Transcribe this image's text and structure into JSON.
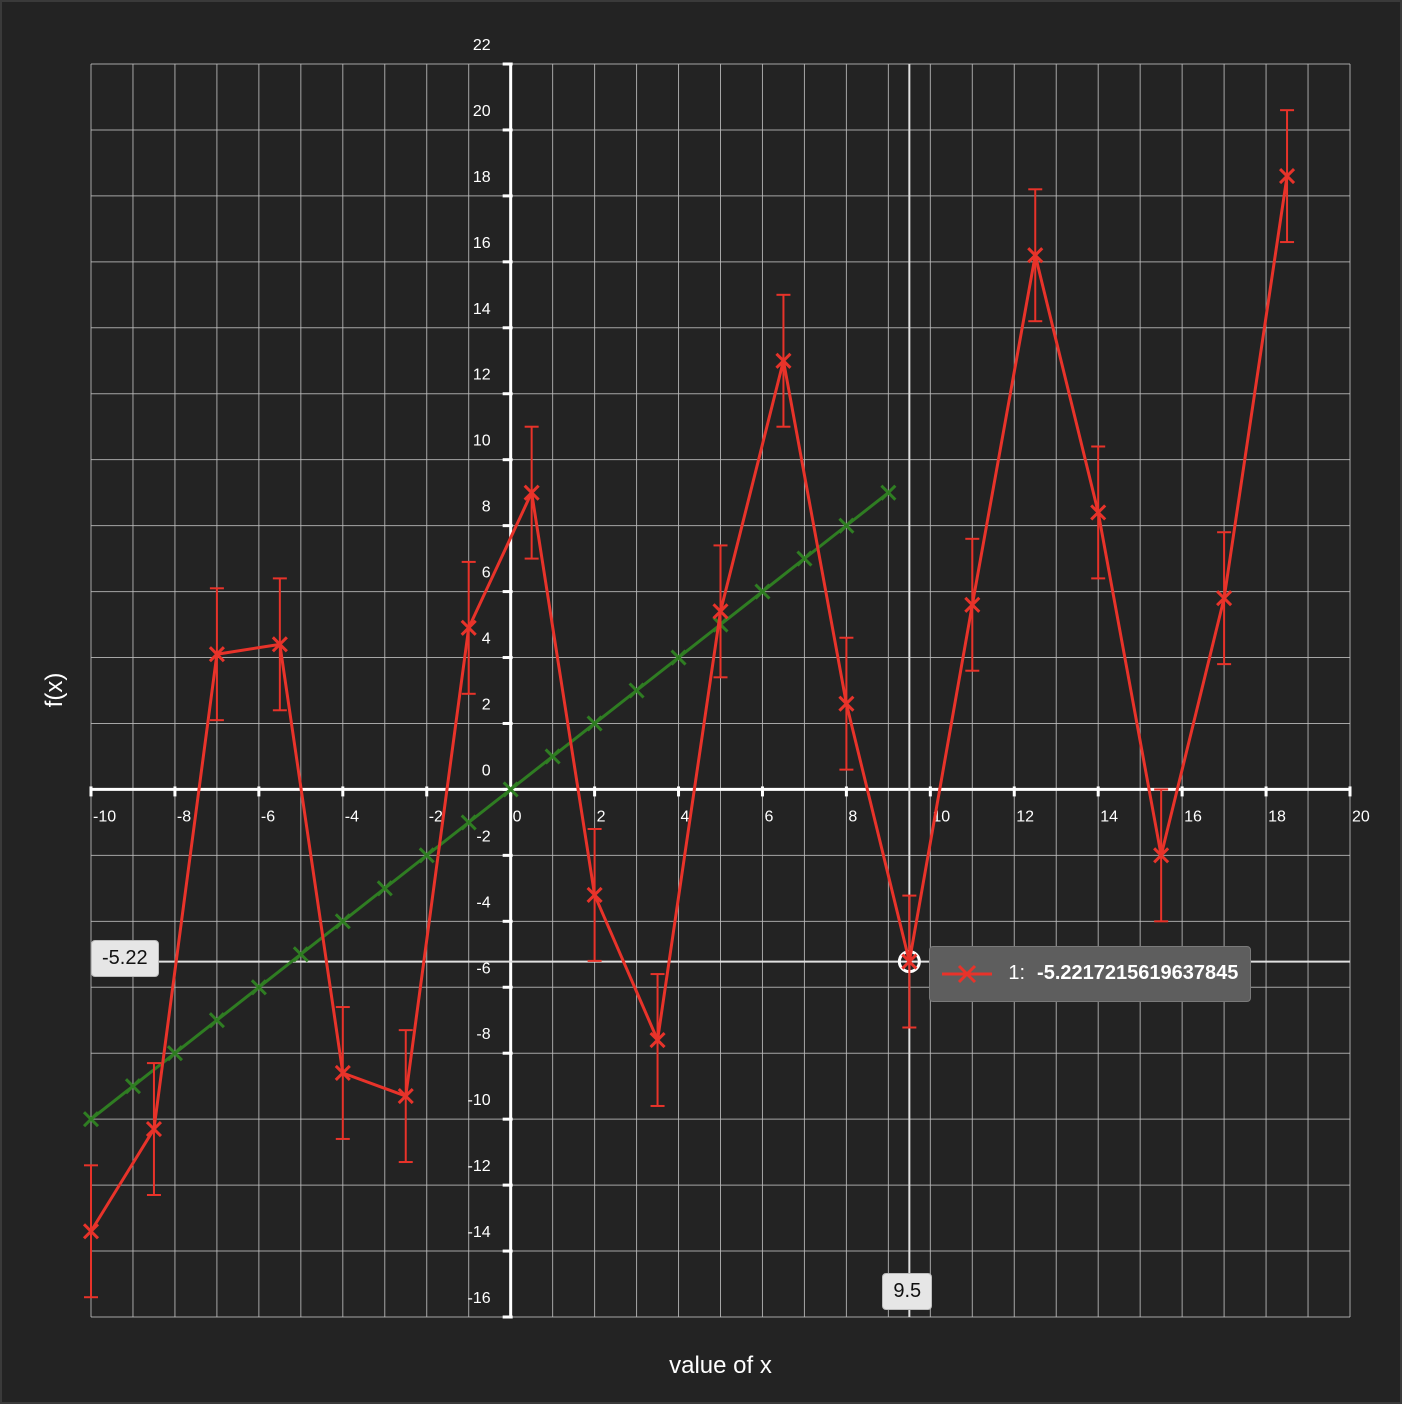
{
  "chart_data": {
    "type": "line",
    "title": "",
    "xlabel": "value of x",
    "ylabel": "f(x)",
    "xlim": [
      -10,
      20
    ],
    "ylim": [
      -16,
      22
    ],
    "x_ticks": [
      "-10",
      "-8",
      "-6",
      "-4",
      "-2",
      "0",
      "2",
      "4",
      "6",
      "8",
      "10",
      "12",
      "14",
      "16",
      "18",
      "20"
    ],
    "y_ticks": [
      "-16",
      "-14",
      "-12",
      "-10",
      "-8",
      "-6",
      "-4",
      "-2",
      "0",
      "2",
      "4",
      "6",
      "8",
      "10",
      "12",
      "14",
      "16",
      "18",
      "20",
      "22"
    ],
    "grid": true,
    "series": [
      {
        "name": "",
        "color": "#2f7d22",
        "marker": "x",
        "x": [
          -10,
          -9,
          -8,
          -7,
          -6,
          -5,
          -4,
          -3,
          -2,
          -1,
          0,
          1,
          2,
          3,
          4,
          5,
          6,
          7,
          8,
          9
        ],
        "y": [
          -10,
          -9,
          -8,
          -7,
          -6,
          -5,
          -4,
          -3,
          -2,
          -1,
          0,
          1,
          2,
          3,
          4,
          5,
          6,
          7,
          8,
          9
        ]
      },
      {
        "name": "1",
        "color": "#e8332a",
        "marker": "x",
        "error_bars": true,
        "x": [
          -10,
          -8.5,
          -7,
          -5.5,
          -4,
          -2.5,
          -1,
          0.5,
          2,
          3.5,
          5,
          6.5,
          8,
          9.5,
          11,
          12.5,
          14,
          15.5,
          17,
          18.5
        ],
        "y": [
          -13.4,
          -10.3,
          4.1,
          4.4,
          -8.6,
          -9.3,
          4.9,
          9.0,
          -3.2,
          -7.6,
          5.4,
          13.0,
          2.6,
          -5.22,
          5.6,
          16.2,
          8.4,
          -2.0,
          5.8,
          18.6
        ],
        "err": [
          2.0,
          2.0,
          2.0,
          2.0,
          2.0,
          2.0,
          2.0,
          2.0,
          2.0,
          2.0,
          2.0,
          2.0,
          2.0,
          2.0,
          2.0,
          2.0,
          2.0,
          2.0,
          2.0,
          2.0
        ]
      }
    ],
    "crosshair": {
      "x_label": "9.5",
      "y_label": "-5.22",
      "tooltip_series_label": "1:",
      "tooltip_value": "-5.2217215619637845"
    }
  }
}
